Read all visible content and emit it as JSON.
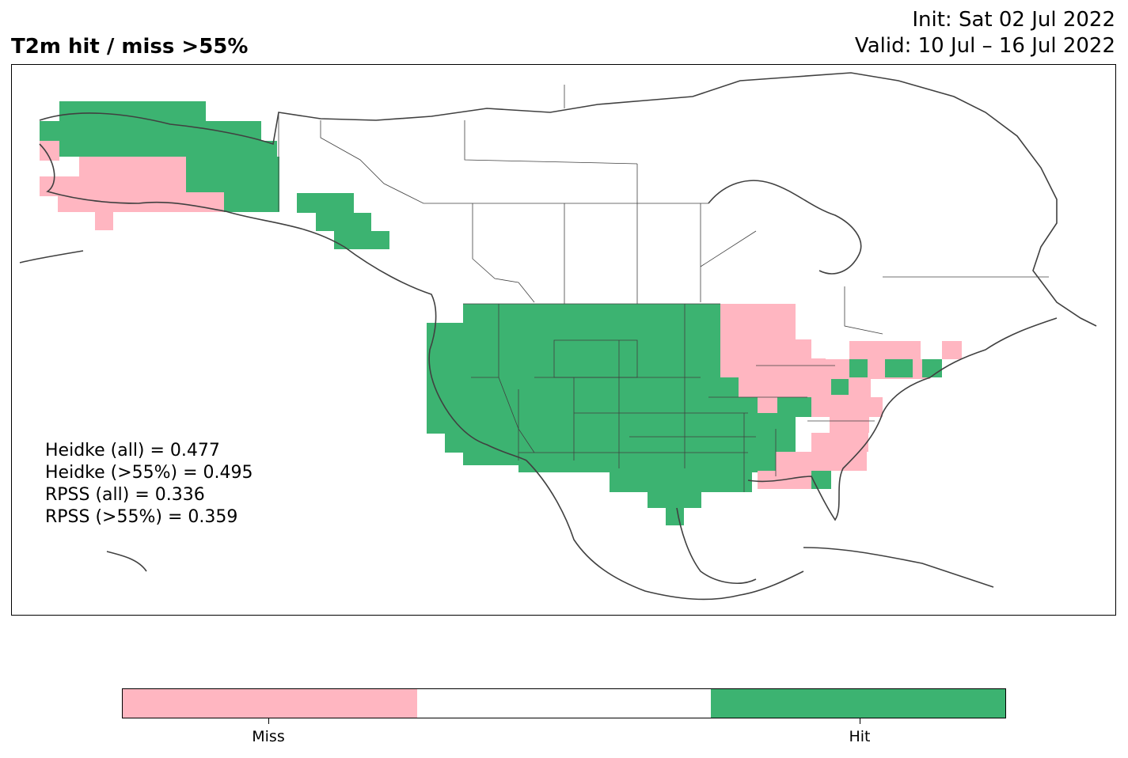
{
  "header": {
    "title": "T2m hit / miss  >55%",
    "init": "Init: Sat 02 Jul 2022",
    "valid": "Valid: 10 Jul – 16 Jul 2022"
  },
  "stats": [
    "Heidke (all) = 0.477",
    "Heidke (>55%) = 0.495",
    "RPSS (all) = 0.336",
    "RPSS (>55%) = 0.359"
  ],
  "colors": {
    "hit": "#3cb371",
    "miss": "#ffb6c1",
    "neutral": "#ffffff",
    "coastline": "#404040"
  },
  "legend": {
    "miss_label": "Miss",
    "hit_label": "Hit"
  },
  "map": {
    "region": "North America",
    "category_values": [
      "Miss",
      "Neutral",
      "Hit"
    ]
  }
}
